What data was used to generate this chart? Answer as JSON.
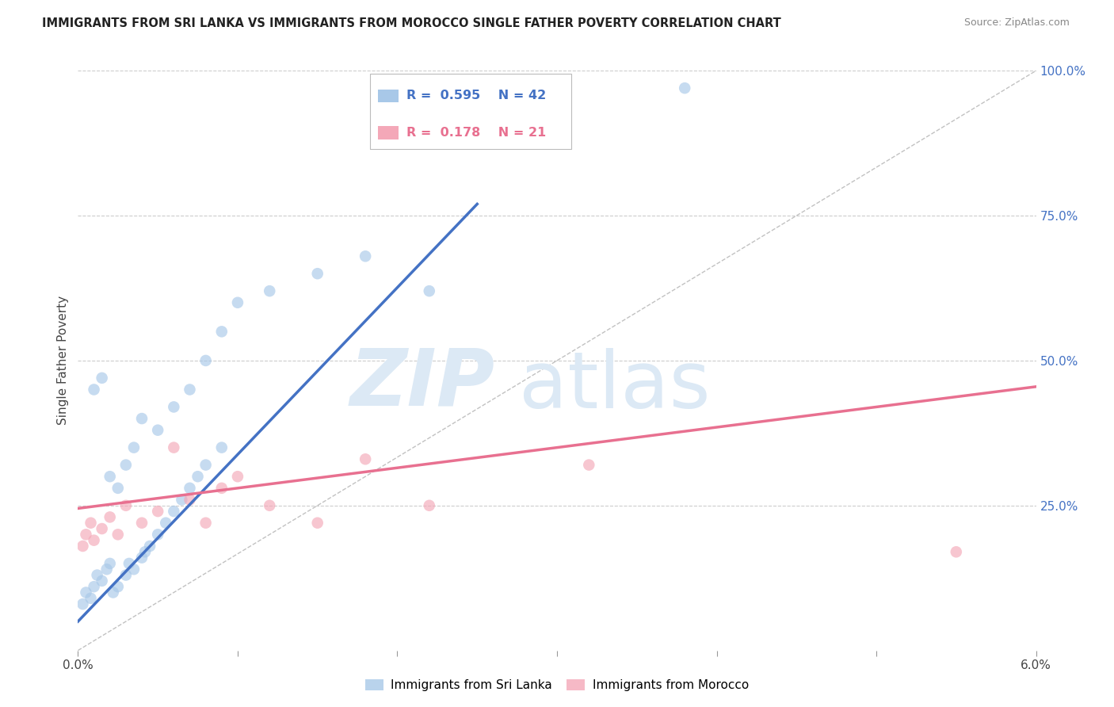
{
  "title": "IMMIGRANTS FROM SRI LANKA VS IMMIGRANTS FROM MOROCCO SINGLE FATHER POVERTY CORRELATION CHART",
  "source": "Source: ZipAtlas.com",
  "ylabel": "Single Father Poverty",
  "ylabel_right_ticks": [
    "100.0%",
    "75.0%",
    "50.0%",
    "25.0%"
  ],
  "ylabel_right_vals": [
    1.0,
    0.75,
    0.5,
    0.25
  ],
  "xlim": [
    0.0,
    0.06
  ],
  "ylim": [
    0.0,
    1.0
  ],
  "sri_lanka_R": 0.595,
  "sri_lanka_N": 42,
  "morocco_R": 0.178,
  "morocco_N": 21,
  "sri_lanka_color": "#A8C8E8",
  "morocco_color": "#F4A8B8",
  "sri_lanka_line_color": "#4472C4",
  "morocco_line_color": "#E87090",
  "background_color": "#FFFFFF",
  "grid_color": "#CCCCCC",
  "watermark_zip": "ZIP",
  "watermark_atlas": "atlas",
  "watermark_color": "#DCE9F5",
  "title_color": "#222222",
  "right_tick_color": "#4472C4",
  "legend_label_sl": "Immigrants from Sri Lanka",
  "legend_label_mo": "Immigrants from Morocco",
  "sl_line_x0": 0.0,
  "sl_line_y0": 0.05,
  "sl_line_x1": 0.025,
  "sl_line_y1": 0.77,
  "mo_line_x0": 0.0,
  "mo_line_y0": 0.245,
  "mo_line_x1": 0.06,
  "mo_line_y1": 0.455,
  "sl_scatter_x": [
    0.0003,
    0.0005,
    0.0008,
    0.001,
    0.0012,
    0.0015,
    0.0018,
    0.002,
    0.0022,
    0.0025,
    0.003,
    0.0032,
    0.0035,
    0.004,
    0.0042,
    0.0045,
    0.005,
    0.0055,
    0.006,
    0.0065,
    0.007,
    0.0075,
    0.008,
    0.009,
    0.001,
    0.0015,
    0.002,
    0.0025,
    0.003,
    0.0035,
    0.004,
    0.005,
    0.006,
    0.007,
    0.008,
    0.009,
    0.01,
    0.012,
    0.015,
    0.018,
    0.022,
    0.038
  ],
  "sl_scatter_y": [
    0.08,
    0.1,
    0.09,
    0.11,
    0.13,
    0.12,
    0.14,
    0.15,
    0.1,
    0.11,
    0.13,
    0.15,
    0.14,
    0.16,
    0.17,
    0.18,
    0.2,
    0.22,
    0.24,
    0.26,
    0.28,
    0.3,
    0.32,
    0.35,
    0.45,
    0.47,
    0.3,
    0.28,
    0.32,
    0.35,
    0.4,
    0.38,
    0.42,
    0.45,
    0.5,
    0.55,
    0.6,
    0.62,
    0.65,
    0.68,
    0.62,
    0.97
  ],
  "mo_scatter_x": [
    0.0003,
    0.0005,
    0.0008,
    0.001,
    0.0015,
    0.002,
    0.0025,
    0.003,
    0.004,
    0.005,
    0.006,
    0.007,
    0.008,
    0.009,
    0.01,
    0.012,
    0.015,
    0.018,
    0.022,
    0.032,
    0.055
  ],
  "mo_scatter_y": [
    0.18,
    0.2,
    0.22,
    0.19,
    0.21,
    0.23,
    0.2,
    0.25,
    0.22,
    0.24,
    0.35,
    0.26,
    0.22,
    0.28,
    0.3,
    0.25,
    0.22,
    0.33,
    0.25,
    0.32,
    0.17
  ]
}
